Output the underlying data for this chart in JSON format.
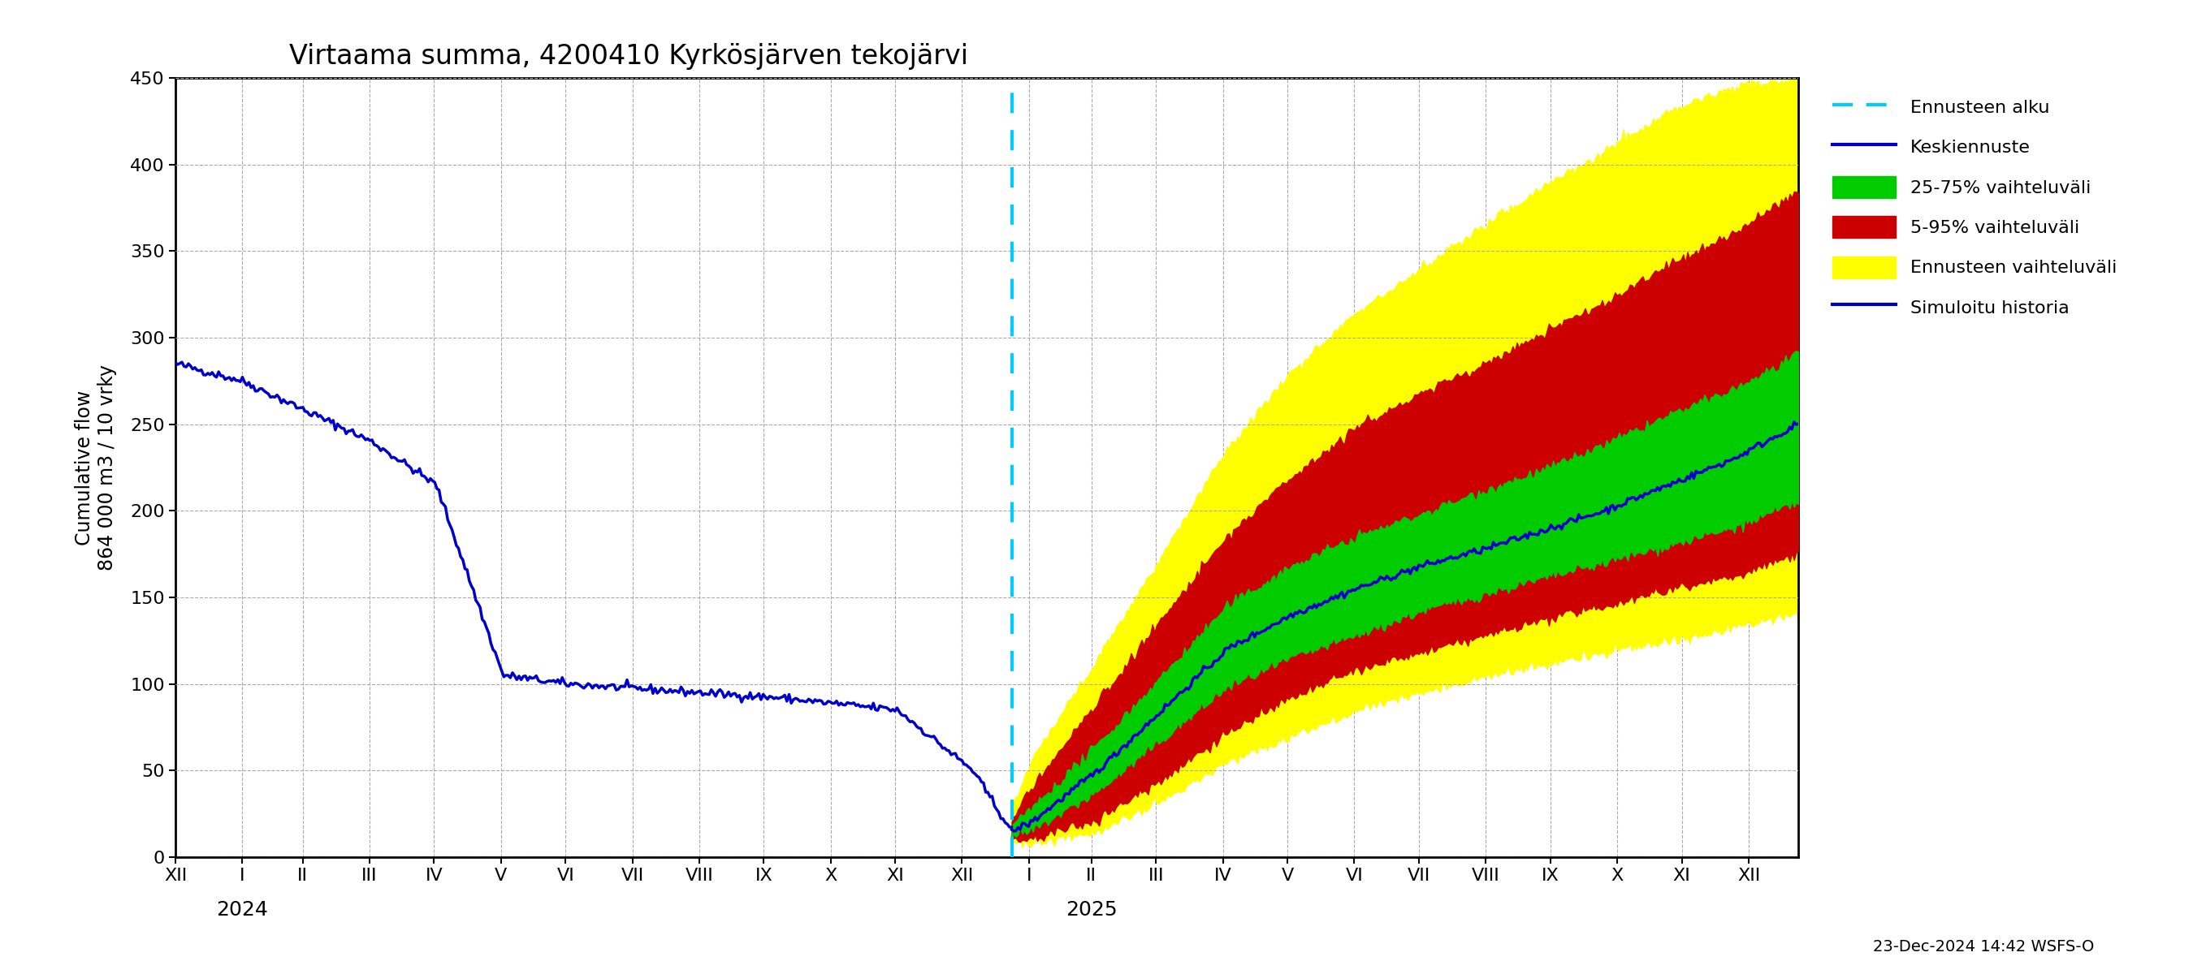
{
  "title": "Virtaama summa, 4200410 Kyrkösjärven tekojärvi",
  "ylabel_line1": "Cumulative flow",
  "ylabel_line2": "864 000 m3 / 10 vrky",
  "ylim": [
    0,
    450
  ],
  "yticks": [
    0,
    50,
    100,
    150,
    200,
    250,
    300,
    350,
    400,
    450
  ],
  "background_color": "#ffffff",
  "grid_color": "#aaaaaa",
  "forecast_line_color": "#00ccff",
  "median_color": "#0000cc",
  "history_color": "#0000cc",
  "band_25_75_color": "#00cc00",
  "band_5_95_color": "#cc0000",
  "band_forecast_color": "#ffff00",
  "timestamp": "23-Dec-2024 14:42 WSFS-O",
  "legend_entries": [
    "Ennusteen alku",
    "Keskiennuste",
    "25-75% vaihteluväli",
    "5-95% vaihteluväli",
    "Ennusteen vaihteluväli",
    "Simuloitu historia"
  ],
  "month_labels_left": [
    "XII",
    "I",
    "II",
    "III",
    "IV",
    "V",
    "VI",
    "VII",
    "VIII",
    "IX",
    "X",
    "XI"
  ],
  "month_labels_right": [
    "XII",
    "I",
    "II",
    "III",
    "IV",
    "V",
    "VI",
    "VII",
    "VIII",
    "IX",
    "X",
    "XI",
    "XII"
  ],
  "month_days_left": [
    0,
    31,
    59,
    90,
    120,
    151,
    181,
    212,
    243,
    273,
    304,
    334
  ],
  "month_days_right": [
    365,
    396,
    425,
    455,
    486,
    516,
    547,
    577,
    608,
    638,
    669,
    699,
    730
  ],
  "xlim": [
    0,
    753
  ],
  "forecast_start": 388,
  "year_2024_x": 31,
  "year_2025_x": 425
}
